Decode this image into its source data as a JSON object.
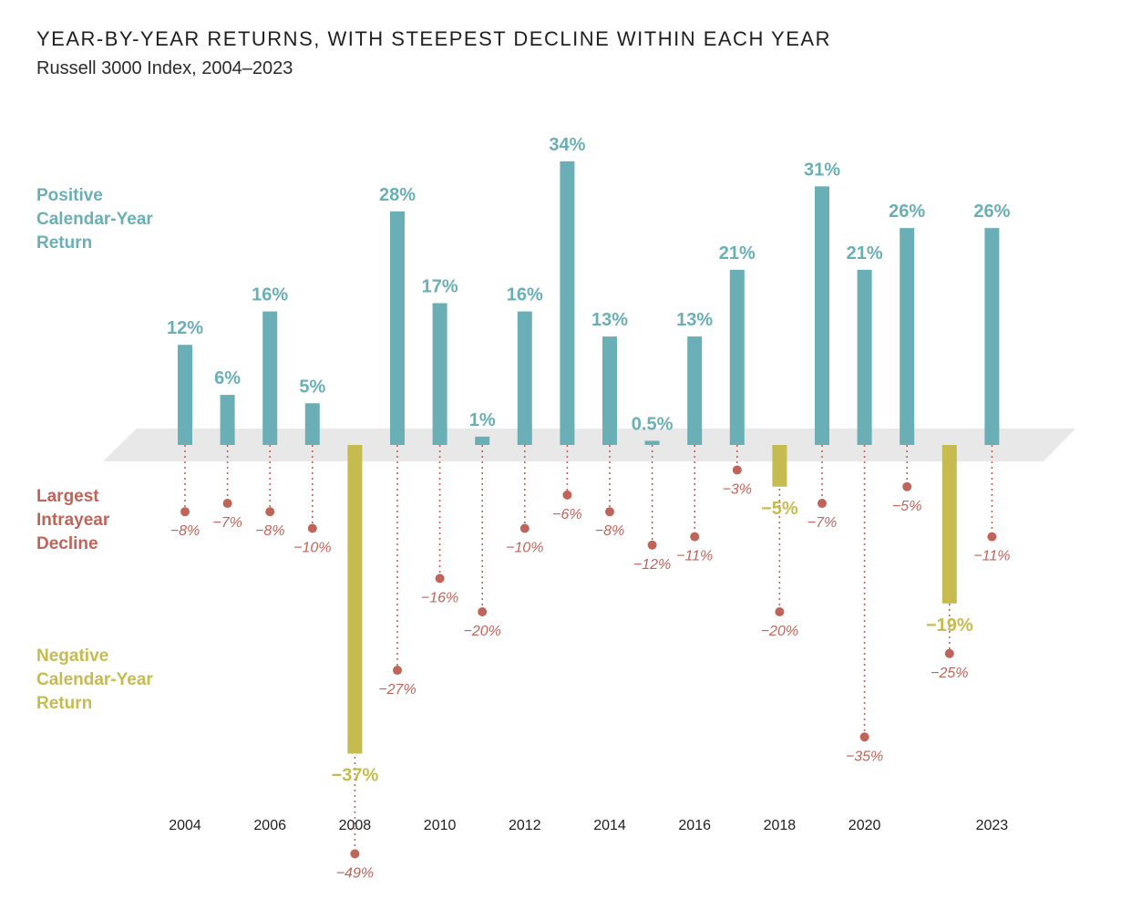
{
  "title": "YEAR-BY-YEAR RETURNS, WITH STEEPEST DECLINE WITHIN EACH YEAR",
  "subtitle": "Russell 3000 Index, 2004–2023",
  "legend": {
    "positive": [
      "Positive",
      "Calendar-Year",
      "Return"
    ],
    "decline": [
      "Largest",
      "Intrayear",
      "Decline"
    ],
    "negative": [
      "Negative",
      "Calendar-Year",
      "Return"
    ]
  },
  "colors": {
    "positive": "#6aafb6",
    "negative": "#c5bb4f",
    "decline": "#c0645a",
    "baseline_band": "#e8e8e8"
  },
  "chart_data": {
    "type": "bar",
    "categories": [
      "2004",
      "2005",
      "2006",
      "2007",
      "2008",
      "2009",
      "2010",
      "2011",
      "2012",
      "2013",
      "2014",
      "2015",
      "2016",
      "2017",
      "2018",
      "2019",
      "2020",
      "2021",
      "2022",
      "2023"
    ],
    "x_tick_labels": [
      "2004",
      "",
      "2006",
      "",
      "2008",
      "",
      "2010",
      "",
      "2012",
      "",
      "2014",
      "",
      "2016",
      "",
      "2018",
      "",
      "2020",
      "",
      "",
      "2023"
    ],
    "series": [
      {
        "values": [
          12,
          6,
          16,
          5,
          -37,
          28,
          17,
          1,
          16,
          34,
          13,
          0.5,
          13,
          21,
          -5,
          31,
          21,
          26,
          -19,
          26
        ],
        "labels": [
          "12%",
          "6%",
          "16%",
          "5%",
          "−37%",
          "28%",
          "17%",
          "1%",
          "16%",
          "34%",
          "13%",
          "0.5%",
          "13%",
          "21%",
          "−5%",
          "31%",
          "21%",
          "26%",
          "−19%",
          "26%"
        ]
      },
      {
        "values": [
          -8,
          -7,
          -8,
          -10,
          -49,
          -27,
          -16,
          -20,
          -10,
          -6,
          -8,
          -12,
          -11,
          -3,
          -20,
          -7,
          -35,
          -5,
          -25,
          -11
        ],
        "labels": [
          "−8%",
          "−7%",
          "−8%",
          "−10%",
          "−49%",
          "−27%",
          "−16%",
          "−20%",
          "−10%",
          "−6%",
          "−8%",
          "−12%",
          "−11%",
          "−3%",
          "−20%",
          "−7%",
          "−35%",
          "−5%",
          "−25%",
          "−11%"
        ]
      }
    ],
    "ylim": [
      -49,
      34
    ],
    "grid": false
  }
}
